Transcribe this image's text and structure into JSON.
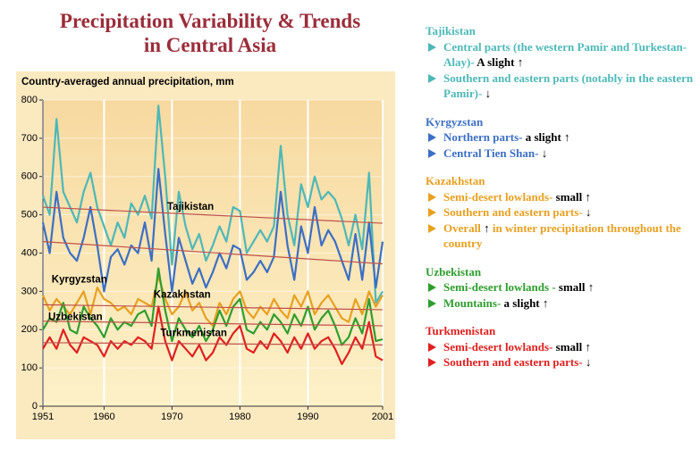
{
  "title": [
    "Precipitation Variability & Trends",
    "in Central Asia"
  ],
  "chart_data": {
    "type": "line",
    "title": "Country-averaged annual precipitation, mm",
    "x": [
      1951,
      1952,
      1953,
      1954,
      1955,
      1956,
      1957,
      1958,
      1959,
      1960,
      1961,
      1962,
      1963,
      1964,
      1965,
      1966,
      1967,
      1968,
      1969,
      1970,
      1971,
      1972,
      1973,
      1974,
      1975,
      1976,
      1977,
      1978,
      1979,
      1980,
      1981,
      1982,
      1983,
      1984,
      1985,
      1986,
      1987,
      1988,
      1989,
      1990,
      1991,
      1992,
      1993,
      1994,
      1995,
      1996,
      1997,
      1998,
      1999,
      2000,
      2001
    ],
    "xlim": [
      1951,
      2001
    ],
    "xticks": [
      1951,
      1960,
      1970,
      1980,
      1990,
      2001
    ],
    "ylim": [
      0,
      800
    ],
    "yticks": [
      0,
      100,
      200,
      300,
      400,
      500,
      600,
      700,
      800
    ],
    "grid": true,
    "series": [
      {
        "name": "Tajikistan",
        "color": "#4db8b8",
        "trend": [
          520,
          478
        ],
        "values": [
          550,
          500,
          750,
          560,
          520,
          480,
          560,
          610,
          520,
          470,
          420,
          480,
          440,
          530,
          500,
          550,
          490,
          785,
          600,
          370,
          560,
          470,
          410,
          450,
          380,
          420,
          470,
          430,
          520,
          510,
          400,
          430,
          460,
          430,
          470,
          680,
          500,
          420,
          580,
          520,
          600,
          540,
          560,
          540,
          490,
          420,
          500,
          410,
          610,
          270,
          300
        ]
      },
      {
        "name": "Kyrgyzstan",
        "color": "#3b6fc4",
        "trend": [
          430,
          372
        ],
        "values": [
          480,
          400,
          560,
          440,
          400,
          380,
          440,
          520,
          420,
          300,
          390,
          410,
          370,
          420,
          400,
          480,
          380,
          620,
          450,
          300,
          440,
          380,
          320,
          360,
          310,
          350,
          400,
          360,
          420,
          410,
          330,
          350,
          380,
          350,
          390,
          560,
          420,
          330,
          470,
          400,
          520,
          420,
          460,
          430,
          380,
          330,
          450,
          330,
          480,
          310,
          430
        ]
      },
      {
        "name": "Kazakhstan",
        "color": "#e8a020",
        "trend": [
          265,
          252
        ],
        "values": [
          290,
          250,
          280,
          260,
          240,
          270,
          300,
          240,
          310,
          280,
          270,
          250,
          260,
          240,
          280,
          270,
          260,
          340,
          280,
          240,
          260,
          300,
          250,
          270,
          230,
          210,
          270,
          240,
          280,
          300,
          250,
          230,
          260,
          240,
          280,
          250,
          230,
          290,
          260,
          300,
          240,
          270,
          290,
          260,
          230,
          220,
          280,
          240,
          300,
          260,
          290
        ]
      },
      {
        "name": "Uzbekistan",
        "color": "#2e9e2e",
        "trend": [
          222,
          210
        ],
        "values": [
          200,
          230,
          220,
          270,
          200,
          190,
          260,
          230,
          210,
          180,
          230,
          200,
          220,
          210,
          240,
          250,
          210,
          360,
          250,
          170,
          230,
          200,
          180,
          210,
          170,
          200,
          250,
          210,
          260,
          280,
          200,
          190,
          220,
          200,
          240,
          220,
          190,
          240,
          210,
          260,
          200,
          230,
          250,
          210,
          160,
          180,
          230,
          190,
          280,
          170,
          175
        ]
      },
      {
        "name": "Turkmenistan",
        "color": "#e02020",
        "trend": [
          166,
          160
        ],
        "values": [
          150,
          180,
          150,
          200,
          160,
          140,
          180,
          170,
          160,
          130,
          170,
          150,
          170,
          160,
          180,
          170,
          150,
          260,
          170,
          120,
          170,
          150,
          130,
          160,
          120,
          140,
          180,
          160,
          190,
          210,
          150,
          140,
          170,
          150,
          190,
          170,
          140,
          180,
          150,
          190,
          150,
          170,
          180,
          150,
          110,
          140,
          180,
          150,
          220,
          130,
          120
        ]
      }
    ],
    "trend_color": "#c0504d"
  },
  "notes": [
    {
      "items": [
        [
          "Central parts (the western Pamir and Turkestan-Alay)- ",
          "A slight ↑"
        ],
        [
          "Southern and eastern parts (notably in the eastern Pamir)- ",
          "↓"
        ]
      ]
    },
    {
      "items": [
        [
          "Northern parts- ",
          "a slight ↑"
        ],
        [
          "Central Tien Shan- ",
          "↓"
        ]
      ]
    },
    {
      "items": [
        [
          "Semi-desert lowlands- ",
          "small ↑"
        ],
        [
          "Southern and eastern parts- ",
          "↓"
        ],
        [
          "Overall ",
          "↑",
          " in winter precipitation throughout the country"
        ]
      ]
    },
    {
      "items": [
        [
          "Semi-desert lowlands - ",
          "small ↑"
        ],
        [
          "Mountains- ",
          "a slight ↑"
        ]
      ]
    },
    {
      "items": [
        [
          "Semi-desert lowlands- ",
          "small ↑"
        ],
        [
          "Southern and eastern parts- ",
          "↓"
        ]
      ]
    }
  ]
}
